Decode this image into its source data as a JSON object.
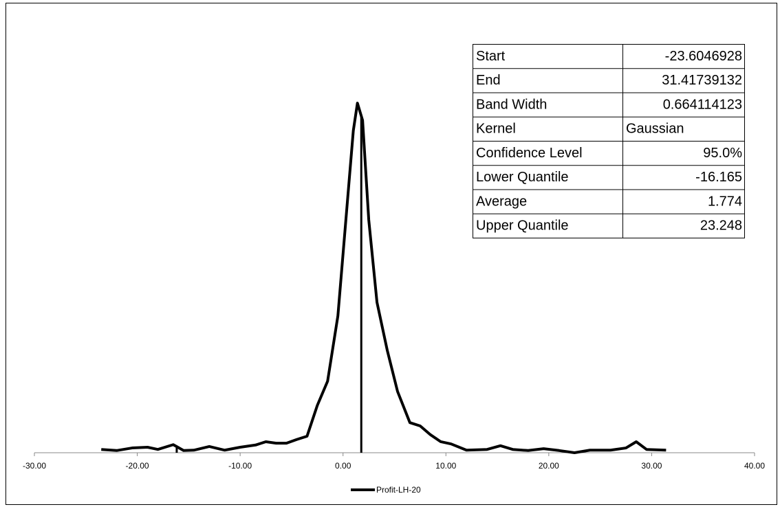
{
  "chart_data": {
    "type": "line",
    "x": [
      -23.5,
      -22,
      -20.5,
      -19,
      -18,
      -16.5,
      -15.5,
      -14.5,
      -13,
      -11.5,
      -10,
      -8.5,
      -7.5,
      -6.5,
      -5.5,
      -4.5,
      -3.5,
      -2.5,
      -1.5,
      -0.5,
      0.5,
      1.0,
      1.4,
      1.9,
      2.5,
      3.3,
      4.3,
      5.3,
      6.5,
      7.5,
      8.5,
      9.5,
      10.5,
      12,
      14,
      15.3,
      16.5,
      18,
      19.5,
      21,
      22.5,
      24,
      26,
      27.5,
      28.5,
      29.5,
      31.4
    ],
    "series": [
      {
        "name": "Profit-LH-20",
        "color": "#000000",
        "values": [
          0.009,
          0.006,
          0.013,
          0.015,
          0.009,
          0.022,
          0.006,
          0.007,
          0.017,
          0.007,
          0.015,
          0.021,
          0.03,
          0.026,
          0.026,
          0.036,
          0.045,
          0.129,
          0.195,
          0.373,
          0.71,
          0.878,
          0.953,
          0.906,
          0.635,
          0.41,
          0.279,
          0.167,
          0.082,
          0.073,
          0.049,
          0.03,
          0.024,
          0.007,
          0.009,
          0.019,
          0.009,
          0.006,
          0.011,
          0.006,
          0.0,
          0.007,
          0.007,
          0.013,
          0.03,
          0.009,
          0.007
        ]
      }
    ],
    "xlim": [
      -30,
      40
    ],
    "xticks": [
      {
        "value": -30,
        "label": "-30.00"
      },
      {
        "value": -20,
        "label": "-20.00"
      },
      {
        "value": -10,
        "label": "-10.00"
      },
      {
        "value": 0,
        "label": "0.00"
      },
      {
        "value": 10,
        "label": "10.00"
      },
      {
        "value": 20,
        "label": "20.00"
      },
      {
        "value": 30,
        "label": "30.00"
      },
      {
        "value": 40,
        "label": "40.00"
      }
    ],
    "ylim": [
      0,
      1
    ],
    "table": {
      "rows": [
        {
          "label": "Start",
          "value": -23.6046928
        },
        {
          "label": "End",
          "value": 31.41739132
        },
        {
          "label": "Band Width",
          "value": 0.664114123
        },
        {
          "label": "Kernel",
          "value": "Gaussian"
        },
        {
          "label": "Confidence Level",
          "value": {
            "value": 95,
            "label": "95.0%"
          }
        },
        {
          "label": "Lower Quantile",
          "value": -16.165
        },
        {
          "label": "Average",
          "value": 1.774
        },
        {
          "label": "Upper Quantile",
          "value": 23.248
        }
      ]
    }
  }
}
